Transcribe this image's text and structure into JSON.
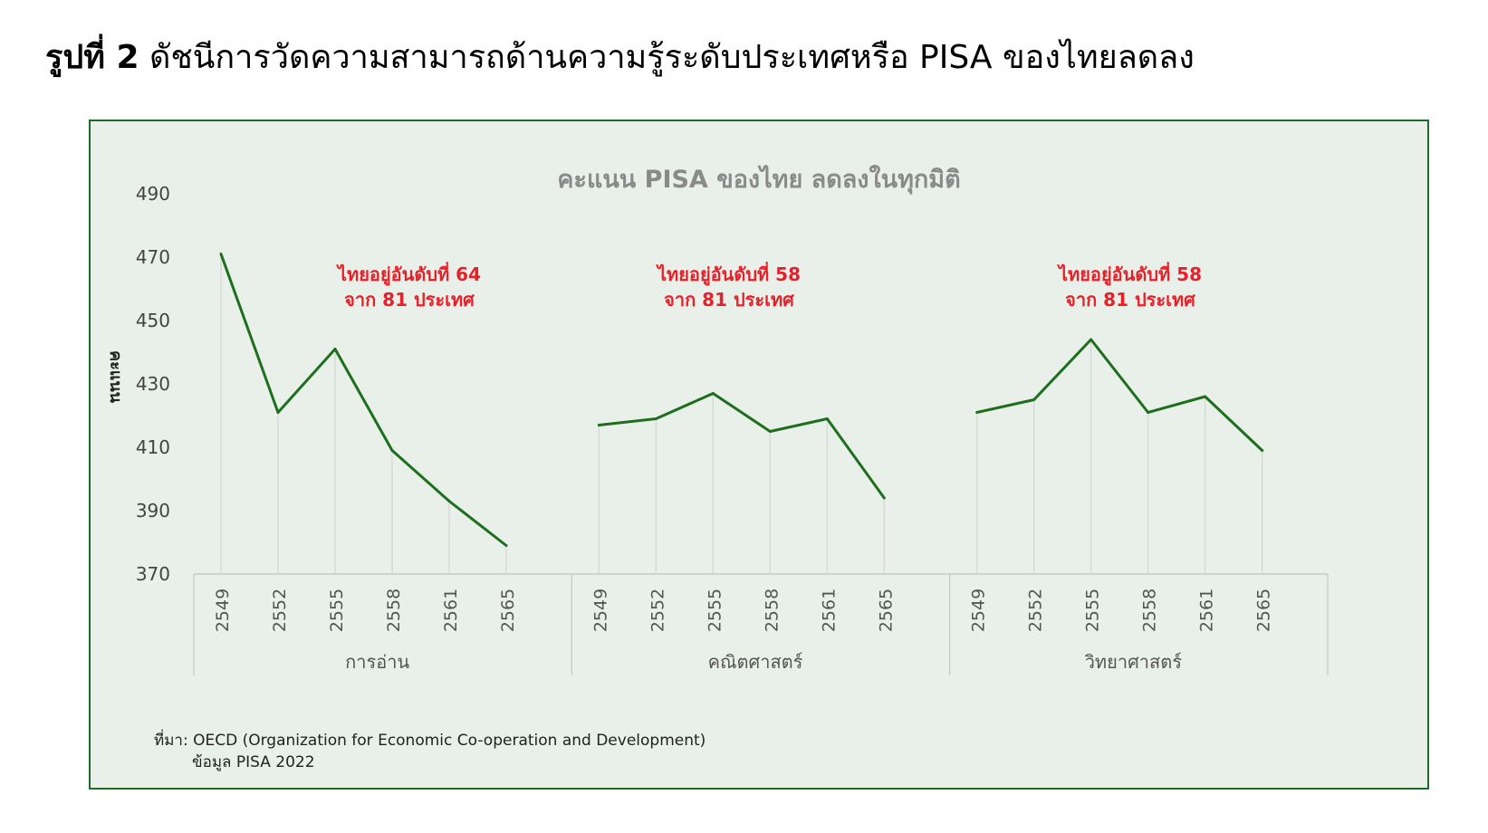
{
  "heading": {
    "bold": "รูปที่ 2",
    "text": "ดัชนีการวัดความสามารถด้านความรู้ระดับประเทศหรือ PISA ของไทยลดลง"
  },
  "chart_data": {
    "type": "line",
    "title": "คะแนน PISA ของไทย ลดลงในทุกมิติ",
    "ylabel": "คะแนน",
    "ylim": [
      370,
      490
    ],
    "yticks": [
      370,
      390,
      410,
      430,
      450,
      470,
      490
    ],
    "grid": false,
    "line_color": "#1e6e1e",
    "annotation_color": "#e8202a",
    "groups": [
      {
        "name": "การอ่าน",
        "years": [
          "2549",
          "2552",
          "2555",
          "2558",
          "2561",
          "2565"
        ],
        "values": [
          471,
          421,
          441,
          409,
          393,
          379
        ],
        "annotation": [
          "ไทยอยู่อันดับที่ 64",
          "จาก 81 ประเทศ"
        ]
      },
      {
        "name": "คณิตศาสตร์",
        "years": [
          "2549",
          "2552",
          "2555",
          "2558",
          "2561",
          "2565"
        ],
        "values": [
          417,
          419,
          427,
          415,
          419,
          394
        ],
        "annotation": [
          "ไทยอยู่อันดับที่ 58",
          "จาก 81 ประเทศ"
        ]
      },
      {
        "name": "วิทยาศาสตร์",
        "years": [
          "2549",
          "2552",
          "2555",
          "2558",
          "2561",
          "2565"
        ],
        "values": [
          421,
          425,
          444,
          421,
          426,
          409
        ],
        "annotation": [
          "ไทยอยู่อันดับที่ 58",
          "จาก 81 ประเทศ"
        ]
      }
    ]
  },
  "source": {
    "line1": "ที่มา: OECD (Organization for Economic Co-operation and Development)",
    "line2": "ข้อมูล PISA 2022"
  }
}
